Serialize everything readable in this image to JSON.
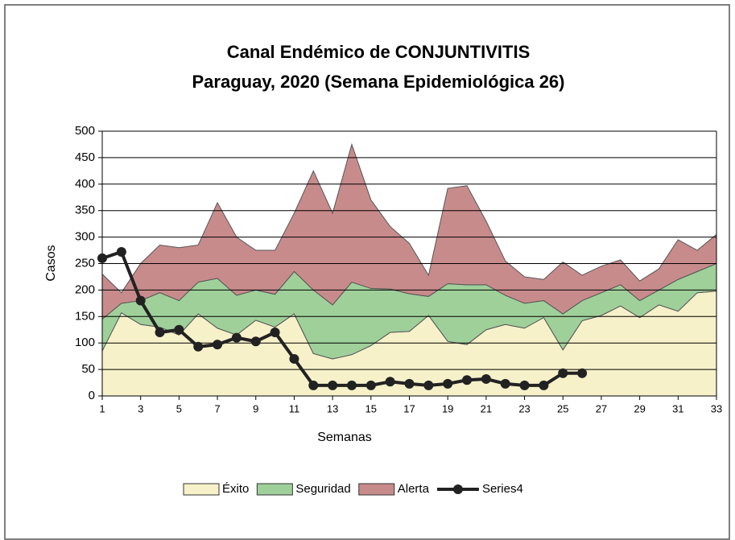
{
  "chart_data": {
    "type": "area_line",
    "title": "Canal Endémico de CONJUNTIVITIS",
    "subtitle": "Paraguay, 2020 (Semana  Epidemiológica 26)",
    "x_label": "Semanas",
    "y_label": "Casos",
    "x": [
      1,
      2,
      3,
      4,
      5,
      6,
      7,
      8,
      9,
      10,
      11,
      12,
      13,
      14,
      15,
      16,
      17,
      18,
      19,
      20,
      21,
      22,
      23,
      24,
      25,
      26,
      27,
      28,
      29,
      30,
      31,
      32,
      33
    ],
    "xlim": [
      1,
      33
    ],
    "xticks": [
      1,
      3,
      5,
      7,
      9,
      11,
      13,
      15,
      17,
      19,
      21,
      23,
      25,
      27,
      29,
      31,
      33
    ],
    "ylim": [
      0,
      500
    ],
    "yticks": [
      0,
      50,
      100,
      150,
      200,
      250,
      300,
      350,
      400,
      450,
      500
    ],
    "grid": true,
    "series": [
      {
        "name": "Éxito",
        "color": "#f6f1c9",
        "stacked": true,
        "values": [
          85,
          157,
          135,
          130,
          115,
          155,
          128,
          115,
          143,
          130,
          155,
          80,
          70,
          78,
          95,
          120,
          122,
          152,
          103,
          97,
          125,
          135,
          128,
          148,
          87,
          142,
          152,
          170,
          148,
          172,
          160,
          195,
          198
        ]
      },
      {
        "name": "Seguridad",
        "color": "#9fd09a",
        "stacked": true,
        "values": [
          60,
          18,
          45,
          65,
          65,
          60,
          94,
          75,
          57,
          62,
          80,
          120,
          102,
          137,
          108,
          82,
          71,
          36,
          109,
          113,
          85,
          55,
          47,
          32,
          68,
          38,
          43,
          40,
          32,
          28,
          60,
          40,
          52
        ]
      },
      {
        "name": "Alerta",
        "color": "#c88b8b",
        "stacked": true,
        "values": [
          85,
          20,
          70,
          90,
          100,
          70,
          143,
          110,
          75,
          83,
          110,
          225,
          173,
          260,
          167,
          118,
          95,
          40,
          180,
          187,
          120,
          65,
          50,
          40,
          98,
          48,
          50,
          47,
          37,
          40,
          75,
          40,
          55
        ]
      },
      {
        "name": "Series4",
        "color": "#222222",
        "stacked": false,
        "values": [
          260,
          272,
          180,
          120,
          125,
          93,
          97,
          110,
          103,
          120,
          70,
          20,
          20,
          20,
          20,
          27,
          23,
          20,
          23,
          30,
          32,
          23,
          20,
          20,
          43,
          43,
          null,
          null,
          null,
          null,
          null,
          null,
          null
        ]
      }
    ]
  }
}
